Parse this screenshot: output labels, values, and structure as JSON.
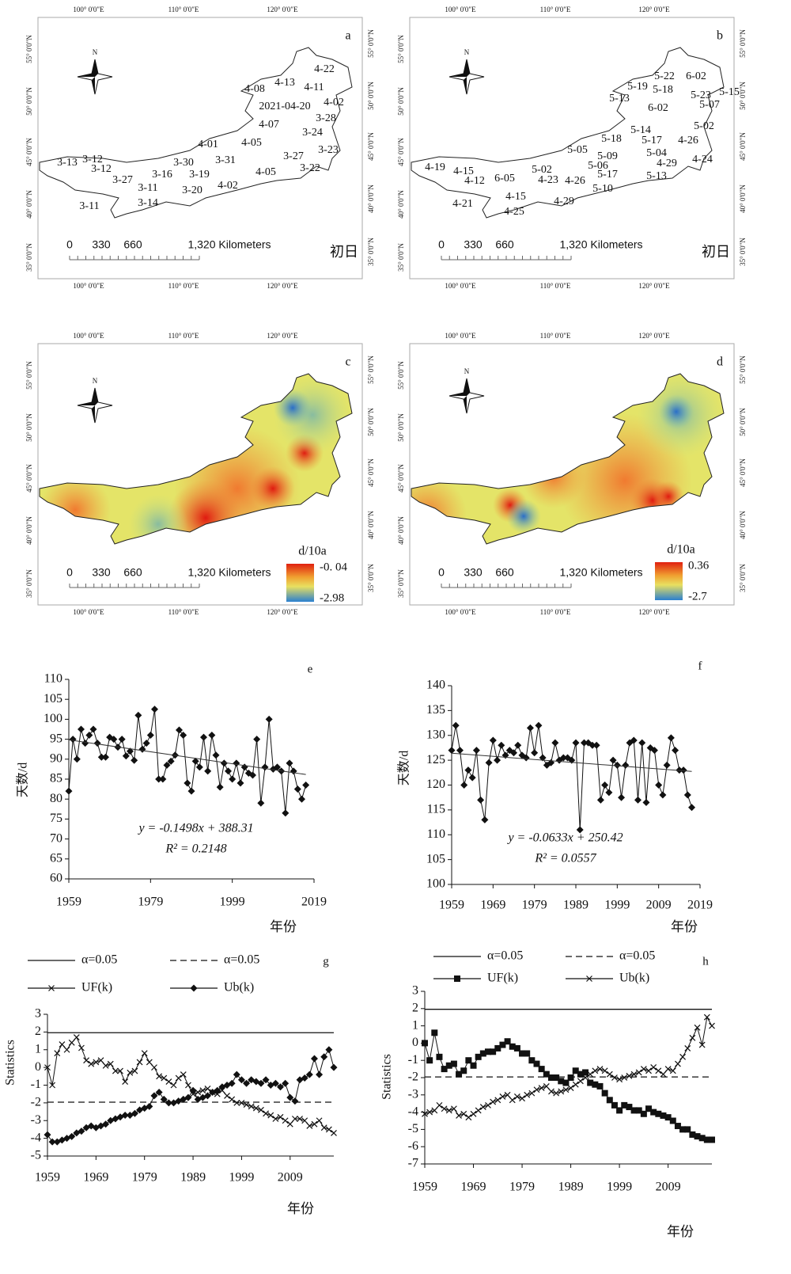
{
  "maps": [
    {
      "label": "a",
      "north": "N",
      "lon_labels": [
        "100° 0'0\"E",
        "110° 0'0\"E",
        "120° 0'0\"E"
      ],
      "lat_labels": [
        "55° 0'0\"N",
        "50° 0'0\"N",
        "45° 0'0\"N",
        "40° 0'0\"N",
        "35° 0'0\"N"
      ],
      "scale_labels": [
        "0",
        "330",
        "660",
        "1,320 Kilometers"
      ],
      "corner_label": "初日",
      "stations": [
        "4-22",
        "4-08",
        "4-13",
        "4-11",
        "2021-04-20",
        "4-02",
        "3-28",
        "4-07",
        "3-24",
        "4-05",
        "4-01",
        "3-23",
        "3-31",
        "3-27",
        "3-30",
        "3-13",
        "3-12",
        "3-12",
        "3-19",
        "3-16",
        "4-05",
        "3-22",
        "3-27",
        "3-11",
        "4-02",
        "3-20",
        "3-14",
        "3-11"
      ]
    },
    {
      "label": "b",
      "north": "N",
      "lon_labels": [
        "100° 0'0\"E",
        "110° 0'0\"E",
        "120° 0'0\"E"
      ],
      "lat_labels": [
        "55° 0'0\"N",
        "50° 0'0\"N",
        "45° 0'0\"N",
        "40° 0'0\"N",
        "35° 0'0\"N"
      ],
      "scale_labels": [
        "0",
        "330",
        "660",
        "1,320 Kilometers"
      ],
      "corner_label": "初日",
      "stations": [
        "5-22",
        "6-02",
        "5-19",
        "5-18",
        "5-15",
        "5-13",
        "5-23",
        "5-07",
        "6-02",
        "5-02",
        "5-14",
        "5-18",
        "5-17",
        "4-26",
        "5-05",
        "5-09",
        "5-04",
        "5-06",
        "4-29",
        "4-24",
        "5-02",
        "4-19",
        "4-15",
        "6-05",
        "5-17",
        "5-13",
        "4-12",
        "4-23",
        "4-26",
        "5-10",
        "4-15",
        "4-29",
        "4-21",
        "4-25"
      ]
    },
    {
      "label": "c",
      "north": "N",
      "lon_labels": [
        "100° 0'0\"E",
        "110° 0'0\"E",
        "120° 0'0\"E"
      ],
      "lat_labels": [
        "55° 0'0\"N",
        "50° 0'0\"N",
        "45° 0'0\"N",
        "40° 0'0\"N",
        "35° 0'0\"N"
      ],
      "scale_labels": [
        "0",
        "330",
        "660",
        "1,320 Kilometers"
      ],
      "legend": {
        "title": "d/10a",
        "max": {
          "value": -0.04,
          "label": "-0. 04"
        },
        "min": -2.98
      }
    },
    {
      "label": "d",
      "north": "N",
      "lon_labels": [
        "100° 0'0\"E",
        "110° 0'0\"E",
        "120° 0'0\"E"
      ],
      "lat_labels": [
        "55° 0'0\"N",
        "50° 0'0\"N",
        "45° 0'0\"N",
        "40° 0'0\"N",
        "35° 0'0\"N"
      ],
      "scale_labels": [
        "0",
        "330",
        "660",
        "1,320 Kilometers"
      ],
      "legend": {
        "title": "d/10a",
        "max": 0.36,
        "min": -2.7
      }
    }
  ],
  "chart_data": [
    {
      "type": "line",
      "label": "e",
      "ylabel": "天数/d",
      "xlabel": "年份",
      "xlim": [
        1959,
        2019
      ],
      "xticks": [
        1959,
        1979,
        1999,
        2019
      ],
      "ylim": [
        60,
        110
      ],
      "yticks": [
        60,
        65,
        70,
        75,
        80,
        85,
        90,
        95,
        100,
        105,
        110
      ],
      "x": [
        1959,
        1960,
        1961,
        1962,
        1963,
        1964,
        1965,
        1966,
        1967,
        1968,
        1969,
        1970,
        1971,
        1972,
        1973,
        1974,
        1975,
        1976,
        1977,
        1978,
        1979,
        1980,
        1981,
        1982,
        1983,
        1984,
        1985,
        1986,
        1987,
        1988,
        1989,
        1990,
        1991,
        1992,
        1993,
        1994,
        1995,
        1996,
        1997,
        1998,
        1999,
        2000,
        2001,
        2002,
        2003,
        2004,
        2005,
        2006,
        2007,
        2008,
        2009,
        2010,
        2011,
        2012,
        2013,
        2014,
        2015,
        2016,
        2017
      ],
      "series": [
        {
          "color": "#111",
          "marker": "diamond",
          "values": [
            82,
            95,
            90,
            97.5,
            94,
            96,
            97.5,
            94,
            90.5,
            90.5,
            95.5,
            95,
            93,
            95,
            90.8,
            92,
            89.7,
            101,
            92.5,
            94,
            96,
            102.5,
            85,
            85,
            88.5,
            89.5,
            91,
            97.3,
            96,
            84,
            82,
            89.5,
            88,
            95.5,
            87,
            96,
            91,
            83,
            89,
            87,
            85,
            89,
            84,
            88,
            86.5,
            86,
            95,
            79,
            88,
            100,
            87.5,
            88,
            87,
            76.5,
            89,
            87,
            82.5,
            80,
            83.5
          ]
        }
      ],
      "trend": {
        "slope": -0.1498,
        "intercept": 388.31
      },
      "equation": "y = -0.1498x + 388.31",
      "r2": "R² = 0.2148"
    },
    {
      "type": "line",
      "label": "f",
      "ylabel": "天数/d",
      "xlabel": "年份",
      "xlim": [
        1959,
        2019
      ],
      "xticks": [
        1959,
        1969,
        1979,
        1989,
        1999,
        2009,
        2019
      ],
      "ylim": [
        100,
        140
      ],
      "yticks": [
        100,
        105,
        110,
        115,
        120,
        125,
        130,
        135,
        140
      ],
      "x": [
        1959,
        1960,
        1961,
        1962,
        1963,
        1964,
        1965,
        1966,
        1967,
        1968,
        1969,
        1970,
        1971,
        1972,
        1973,
        1974,
        1975,
        1976,
        1977,
        1978,
        1979,
        1980,
        1981,
        1982,
        1983,
        1984,
        1985,
        1986,
        1987,
        1988,
        1989,
        1990,
        1991,
        1992,
        1993,
        1994,
        1995,
        1996,
        1997,
        1998,
        1999,
        2000,
        2001,
        2002,
        2003,
        2004,
        2005,
        2006,
        2007,
        2008,
        2009,
        2010,
        2011,
        2012,
        2013,
        2014,
        2015,
        2016,
        2017
      ],
      "series": [
        {
          "color": "#111",
          "marker": "diamond",
          "values": [
            127,
            132,
            127,
            120,
            123,
            121.5,
            127,
            117,
            113,
            124.5,
            129,
            125,
            128,
            126,
            127,
            126.5,
            128,
            126,
            125.5,
            131.5,
            126.5,
            132,
            125.5,
            124,
            124.5,
            128.5,
            125,
            125.5,
            125.5,
            125,
            128.5,
            111,
            128.5,
            128.5,
            128,
            128,
            117,
            120,
            118.5,
            125,
            124,
            117.5,
            124,
            128.5,
            129,
            117,
            128.5,
            116.5,
            127.5,
            127,
            120,
            118,
            124,
            129.5,
            127,
            123,
            123,
            118,
            115.5
          ]
        }
      ],
      "trend": {
        "slope": -0.0633,
        "intercept": 250.42
      },
      "equation": "y = -0.0633x + 250.42",
      "r2": "R² = 0.0557"
    },
    {
      "type": "line",
      "label": "g",
      "ylabel": "Statistics",
      "xlabel": "年份",
      "xlim": [
        1959,
        2018
      ],
      "xticks": [
        1959,
        1969,
        1979,
        1989,
        1999,
        2009
      ],
      "ylim": [
        -5,
        3
      ],
      "yticks": [
        -5,
        -4,
        -3,
        -2,
        -1,
        0,
        1,
        2,
        3
      ],
      "x": [
        1959,
        1960,
        1961,
        1962,
        1963,
        1964,
        1965,
        1966,
        1967,
        1968,
        1969,
        1970,
        1971,
        1972,
        1973,
        1974,
        1975,
        1976,
        1977,
        1978,
        1979,
        1980,
        1981,
        1982,
        1983,
        1984,
        1985,
        1986,
        1987,
        1988,
        1989,
        1990,
        1991,
        1992,
        1993,
        1994,
        1995,
        1996,
        1997,
        1998,
        1999,
        2000,
        2001,
        2002,
        2003,
        2004,
        2005,
        2006,
        2007,
        2008,
        2009,
        2010,
        2011,
        2012,
        2013,
        2014,
        2015,
        2016,
        2017,
        2018
      ],
      "series": [
        {
          "name": "α=0.05",
          "color": "#111",
          "line": "solid",
          "level": 1.96
        },
        {
          "name": "α=0.05",
          "color": "#111",
          "line": "dashed",
          "level": -1.96
        },
        {
          "name": "UF(k)",
          "color": "#111",
          "marker": "x",
          "values": [
            0,
            -1,
            0.8,
            1.3,
            1.0,
            1.4,
            1.7,
            1.1,
            0.4,
            0.2,
            0.3,
            0.4,
            0.1,
            0.2,
            -0.2,
            -0.2,
            -0.8,
            -0.3,
            -0.2,
            0.3,
            0.8,
            0.3,
            0,
            -0.5,
            -0.6,
            -0.8,
            -1.0,
            -0.6,
            -0.4,
            -1.0,
            -1.5,
            -1.4,
            -1.3,
            -1.2,
            -1.4,
            -1.5,
            -1.3,
            -1.6,
            -1.8,
            -2.0,
            -2.0,
            -2.1,
            -2.2,
            -2.3,
            -2.4,
            -2.6,
            -2.7,
            -2.9,
            -2.8,
            -3.0,
            -3.2,
            -2.9,
            -2.9,
            -3.0,
            -3.3,
            -3.2,
            -3.0,
            -3.4,
            -3.5,
            -3.7
          ]
        },
        {
          "name": "Ub(k)",
          "color": "#111",
          "marker": "diamond",
          "values": [
            -3.8,
            -4.2,
            -4.2,
            -4.1,
            -4.0,
            -3.9,
            -3.7,
            -3.6,
            -3.4,
            -3.3,
            -3.4,
            -3.3,
            -3.2,
            -3.0,
            -2.9,
            -2.8,
            -2.7,
            -2.7,
            -2.6,
            -2.4,
            -2.3,
            -2.2,
            -1.6,
            -1.4,
            -1.8,
            -2.0,
            -2.0,
            -1.9,
            -1.8,
            -1.7,
            -1.3,
            -1.8,
            -1.7,
            -1.6,
            -1.4,
            -1.3,
            -1.1,
            -1.0,
            -0.9,
            -0.4,
            -0.7,
            -0.9,
            -0.7,
            -0.8,
            -0.9,
            -0.7,
            -1.0,
            -0.9,
            -1.1,
            -0.9,
            -1.7,
            -1.9,
            -0.7,
            -0.6,
            -0.4,
            0.5,
            -0.4,
            0.6,
            1.0,
            0
          ]
        }
      ]
    },
    {
      "type": "line",
      "label": "h",
      "ylabel": "Statistics",
      "xlabel": "年份",
      "xlim": [
        1959,
        2018
      ],
      "xticks": [
        1959,
        1969,
        1979,
        1989,
        1999,
        2009
      ],
      "ylim": [
        -7,
        3
      ],
      "yticks": [
        -7,
        -6,
        -5,
        -4,
        -3,
        -2,
        -1,
        0,
        1,
        2,
        3
      ],
      "x": [
        1959,
        1960,
        1961,
        1962,
        1963,
        1964,
        1965,
        1966,
        1967,
        1968,
        1969,
        1970,
        1971,
        1972,
        1973,
        1974,
        1975,
        1976,
        1977,
        1978,
        1979,
        1980,
        1981,
        1982,
        1983,
        1984,
        1985,
        1986,
        1987,
        1988,
        1989,
        1990,
        1991,
        1992,
        1993,
        1994,
        1995,
        1996,
        1997,
        1998,
        1999,
        2000,
        2001,
        2002,
        2003,
        2004,
        2005,
        2006,
        2007,
        2008,
        2009,
        2010,
        2011,
        2012,
        2013,
        2014,
        2015,
        2016,
        2017,
        2018
      ],
      "series": [
        {
          "name": "α=0.05",
          "color": "#111",
          "line": "solid",
          "level": 1.96
        },
        {
          "name": "α=0.05",
          "color": "#111",
          "line": "dashed",
          "level": -1.96
        },
        {
          "name": "UF(k)",
          "color": "#111",
          "marker": "square",
          "values": [
            0,
            -1,
            0.6,
            -0.8,
            -1.5,
            -1.3,
            -1.2,
            -1.8,
            -1.6,
            -1.0,
            -1.3,
            -0.8,
            -0.6,
            -0.5,
            -0.5,
            -0.3,
            -0.1,
            0.1,
            -0.2,
            -0.3,
            -0.6,
            -0.6,
            -1.0,
            -1.2,
            -1.5,
            -1.8,
            -2.0,
            -2.0,
            -2.2,
            -2.3,
            -2.0,
            -1.6,
            -1.8,
            -1.7,
            -2.3,
            -2.4,
            -2.5,
            -2.9,
            -3.3,
            -3.6,
            -3.9,
            -3.6,
            -3.7,
            -3.9,
            -3.9,
            -4.1,
            -3.8,
            -4.0,
            -4.1,
            -4.2,
            -4.3,
            -4.5,
            -4.8,
            -5.0,
            -5.0,
            -5.3,
            -5.4,
            -5.5,
            -5.6,
            -5.6
          ]
        },
        {
          "name": "Ub(k)",
          "color": "#111",
          "marker": "x",
          "values": [
            -4.1,
            -4.0,
            -3.9,
            -3.6,
            -3.8,
            -3.9,
            -3.8,
            -4.2,
            -4.1,
            -4.3,
            -4.1,
            -3.9,
            -3.7,
            -3.6,
            -3.4,
            -3.3,
            -3.1,
            -3.0,
            -3.3,
            -3.1,
            -3.2,
            -3.0,
            -2.9,
            -2.7,
            -2.6,
            -2.5,
            -2.8,
            -2.9,
            -2.8,
            -2.7,
            -2.6,
            -2.4,
            -2.2,
            -2.0,
            -1.8,
            -1.6,
            -1.5,
            -1.6,
            -1.8,
            -2.0,
            -2.1,
            -2.0,
            -1.9,
            -1.8,
            -1.7,
            -1.5,
            -1.6,
            -1.4,
            -1.6,
            -1.8,
            -1.5,
            -1.6,
            -1.2,
            -0.8,
            -0.3,
            0.3,
            0.9,
            -0.1,
            1.5,
            1.0
          ]
        }
      ]
    }
  ]
}
